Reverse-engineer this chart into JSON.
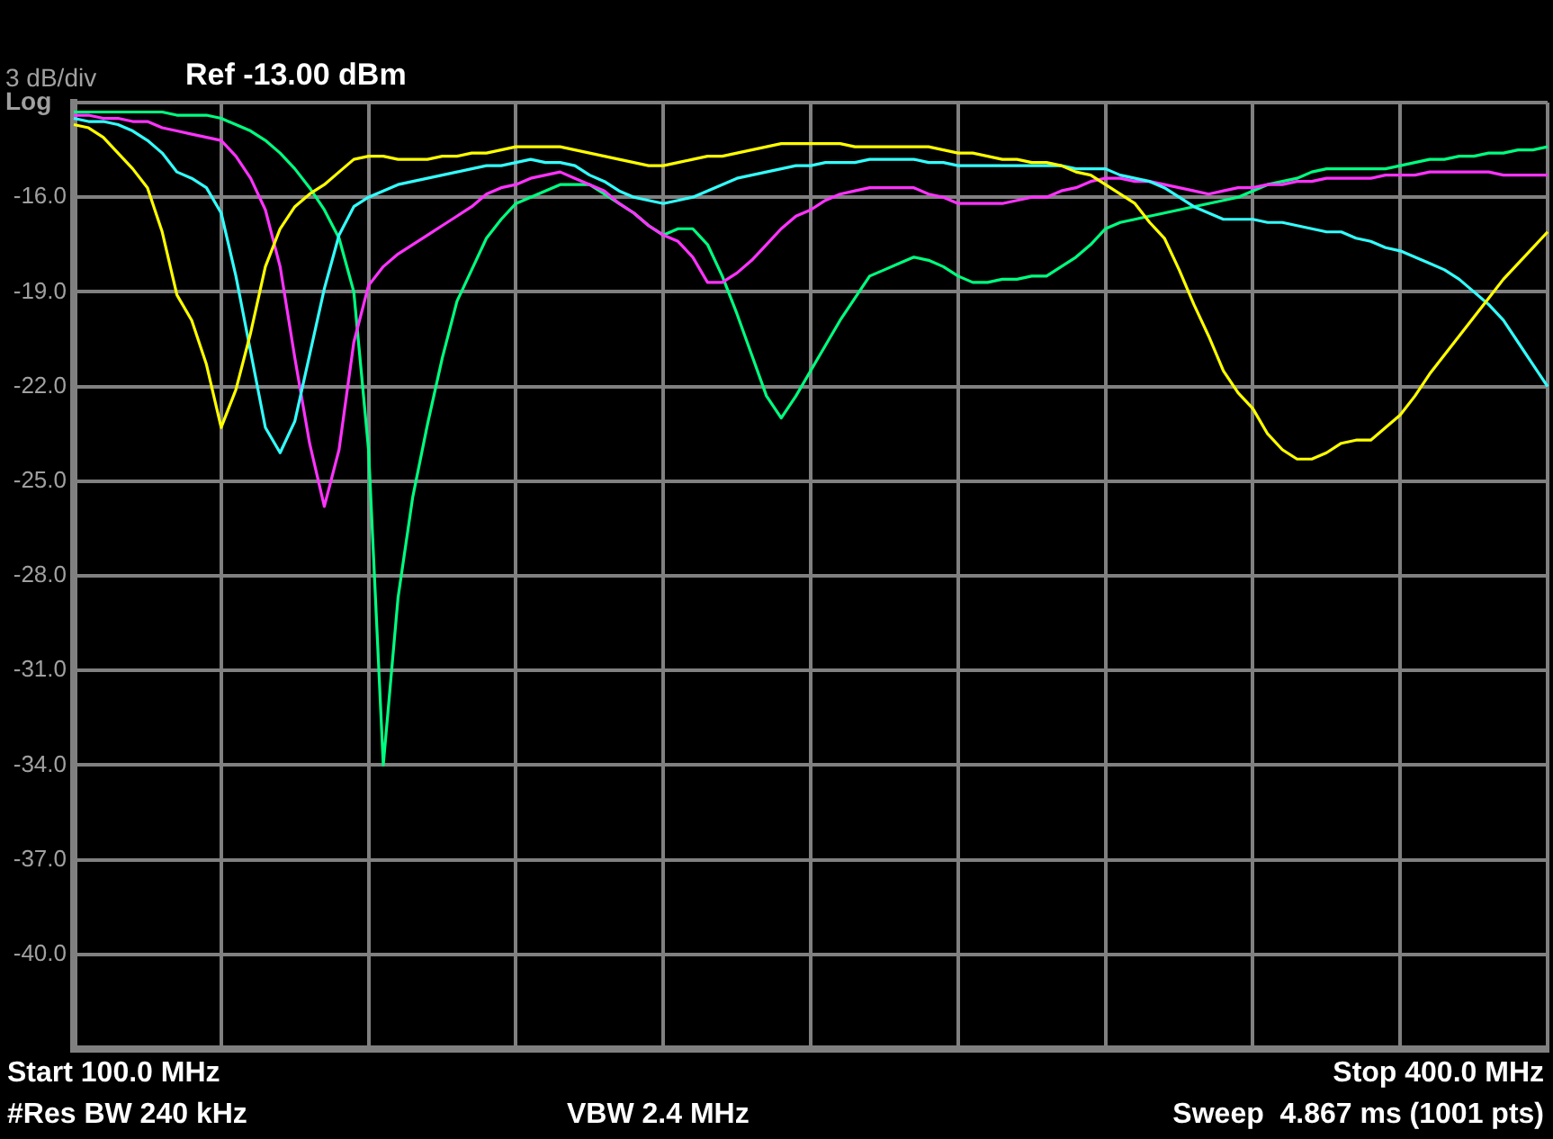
{
  "chart_data": {
    "type": "line",
    "title": "Ref -13.00 dBm",
    "ylabel": "3 dB/div",
    "annotations": [
      "Log",
      "Start 100.0 MHz",
      "Stop 400.0 MHz",
      "#Res BW 240 kHz",
      "VBW 2.4 MHz",
      "Sweep  4.867 ms (1001 pts)"
    ],
    "categories": [
      null,
      null,
      null,
      null,
      null,
      null,
      null,
      null,
      null,
      null,
      null,
      null,
      null,
      null,
      null,
      null,
      null,
      null,
      null,
      null,
      null,
      null,
      null,
      null,
      null,
      null,
      null,
      null,
      null,
      null,
      null,
      null,
      null,
      null,
      null,
      null,
      null,
      null,
      null,
      null,
      null,
      null,
      null,
      null,
      null,
      null,
      null,
      null,
      null,
      null,
      null,
      null,
      null,
      null,
      null,
      null,
      null,
      null,
      null,
      null,
      null,
      null,
      null,
      null,
      null,
      null,
      null,
      null,
      null,
      null,
      null,
      null,
      null,
      null,
      null,
      null,
      null,
      null,
      null,
      null,
      null,
      null,
      null,
      null,
      null,
      null,
      null,
      null,
      null,
      null,
      null,
      null,
      null,
      null,
      null,
      null,
      null,
      null,
      null,
      null,
      null
    ],
    "ylim": [
      -43,
      -13
    ],
    "yticks": [
      {
        "value": -13,
        "label": null
      },
      {
        "value": -16,
        "label": "-16.0"
      },
      {
        "value": -19,
        "label": "-19.0"
      },
      {
        "value": -22,
        "label": "-22.0"
      },
      {
        "value": -25,
        "label": "-25.0"
      },
      {
        "value": -28,
        "label": "-28.0"
      },
      {
        "value": -31,
        "label": "-31.0"
      },
      {
        "value": -34,
        "label": "-34.0"
      },
      {
        "value": -37,
        "label": "-37.0"
      },
      {
        "value": -40,
        "label": "-40.0"
      },
      {
        "value": -43,
        "label": null
      }
    ],
    "tick_labels": "y",
    "grid": true,
    "legend": false,
    "marker": "none",
    "line_style": "solid",
    "series": [
      {
        "color": "#ffff00",
        "values": [
          -13.7,
          -13.8,
          -14.1,
          -14.6,
          -15.1,
          -15.7,
          -17.1,
          -19.1,
          -19.9,
          -21.3,
          -23.3,
          -22.1,
          -20.3,
          -18.2,
          -17.0,
          -16.3,
          -15.9,
          -15.6,
          -15.2,
          -14.8,
          -14.7,
          -14.7,
          -14.8,
          -14.8,
          -14.8,
          -14.7,
          -14.7,
          -14.6,
          -14.6,
          -14.5,
          -14.4,
          -14.4,
          -14.4,
          -14.4,
          -14.5,
          -14.6,
          -14.7,
          -14.8,
          -14.9,
          -15.0,
          -15.0,
          -14.9,
          -14.8,
          -14.7,
          -14.7,
          -14.6,
          -14.5,
          -14.4,
          -14.3,
          -14.3,
          -14.3,
          -14.3,
          -14.3,
          -14.4,
          -14.4,
          -14.4,
          -14.4,
          -14.4,
          -14.4,
          -14.5,
          -14.6,
          -14.6,
          -14.7,
          -14.8,
          -14.8,
          -14.9,
          -14.9,
          -15.0,
          -15.2,
          -15.3,
          -15.6,
          -15.9,
          -16.2,
          -16.8,
          -17.3,
          -18.3,
          -19.4,
          -20.4,
          -21.5,
          -22.2,
          -22.7,
          -23.5,
          -24.0,
          -24.3,
          -24.3,
          -24.1,
          -23.8,
          -23.7,
          -23.7,
          -23.3,
          -22.9,
          -22.3,
          -21.6,
          -21.0,
          -20.4,
          -19.8,
          -19.2,
          -18.6,
          -18.1,
          -17.6,
          -17.1
        ]
      },
      {
        "color": "#33ffff",
        "values": [
          -13.5,
          -13.6,
          -13.6,
          -13.7,
          -13.9,
          -14.2,
          -14.6,
          -15.2,
          -15.4,
          -15.7,
          -16.5,
          -18.5,
          -20.9,
          -23.3,
          -24.1,
          -23.1,
          -21.0,
          -18.9,
          -17.2,
          -16.3,
          -16.0,
          -15.8,
          -15.6,
          -15.5,
          -15.4,
          -15.3,
          -15.2,
          -15.1,
          -15.0,
          -15.0,
          -14.9,
          -14.8,
          -14.9,
          -14.9,
          -15.0,
          -15.3,
          -15.5,
          -15.8,
          -16.0,
          -16.1,
          -16.2,
          -16.1,
          -16.0,
          -15.8,
          -15.6,
          -15.4,
          -15.3,
          -15.2,
          -15.1,
          -15.0,
          -15.0,
          -14.9,
          -14.9,
          -14.9,
          -14.8,
          -14.8,
          -14.8,
          -14.8,
          -14.9,
          -14.9,
          -15.0,
          -15.0,
          -15.0,
          -15.0,
          -15.0,
          -15.0,
          -15.0,
          -15.0,
          -15.1,
          -15.1,
          -15.1,
          -15.3,
          -15.4,
          -15.5,
          -15.7,
          -16.0,
          -16.3,
          -16.5,
          -16.7,
          -16.7,
          -16.7,
          -16.8,
          -16.8,
          -16.9,
          -17.0,
          -17.1,
          -17.1,
          -17.3,
          -17.4,
          -17.6,
          -17.7,
          -17.9,
          -18.1,
          -18.3,
          -18.6,
          -19.0,
          -19.4,
          -19.9,
          -20.6,
          -21.3,
          -22.0
        ]
      },
      {
        "color": "#ff33ff",
        "values": [
          -13.4,
          -13.4,
          -13.5,
          -13.5,
          -13.6,
          -13.6,
          -13.8,
          -13.9,
          -14.0,
          -14.1,
          -14.2,
          -14.7,
          -15.4,
          -16.4,
          -18.2,
          -21.1,
          -23.8,
          -25.8,
          -24.0,
          -20.6,
          -18.8,
          -18.2,
          -17.8,
          -17.5,
          -17.2,
          -16.9,
          -16.6,
          -16.3,
          -15.9,
          -15.7,
          -15.6,
          -15.4,
          -15.3,
          -15.2,
          -15.4,
          -15.6,
          -15.8,
          -16.2,
          -16.5,
          -16.9,
          -17.2,
          -17.4,
          -17.9,
          -18.7,
          -18.7,
          -18.4,
          -18.0,
          -17.5,
          -17.0,
          -16.6,
          -16.4,
          -16.1,
          -15.9,
          -15.8,
          -15.7,
          -15.7,
          -15.7,
          -15.7,
          -15.9,
          -16.0,
          -16.2,
          -16.2,
          -16.2,
          -16.2,
          -16.1,
          -16.0,
          -16.0,
          -15.8,
          -15.7,
          -15.5,
          -15.4,
          -15.4,
          -15.5,
          -15.5,
          -15.6,
          -15.7,
          -15.8,
          -15.9,
          -15.8,
          -15.7,
          -15.7,
          -15.6,
          -15.6,
          -15.5,
          -15.5,
          -15.4,
          -15.4,
          -15.4,
          -15.4,
          -15.3,
          -15.3,
          -15.3,
          -15.2,
          -15.2,
          -15.2,
          -15.2,
          -15.2,
          -15.3,
          -15.3,
          -15.3,
          -15.3
        ]
      },
      {
        "color": "#00ff80",
        "values": [
          -13.3,
          -13.3,
          -13.3,
          -13.3,
          -13.3,
          -13.3,
          -13.3,
          -13.4,
          -13.4,
          -13.4,
          -13.5,
          -13.7,
          -13.9,
          -14.2,
          -14.6,
          -15.1,
          -15.7,
          -16.4,
          -17.3,
          -19.0,
          -24.0,
          -34.0,
          -28.7,
          -25.5,
          -23.2,
          -21.1,
          -19.3,
          -18.3,
          -17.3,
          -16.7,
          -16.2,
          -16.0,
          -15.8,
          -15.6,
          -15.6,
          -15.6,
          -15.9,
          -16.2,
          -16.5,
          -16.9,
          -17.2,
          -17.0,
          -17.0,
          -17.5,
          -18.5,
          -19.7,
          -21.0,
          -22.3,
          -23.0,
          -22.3,
          -21.5,
          -20.7,
          -19.9,
          -19.2,
          -18.5,
          -18.3,
          -18.1,
          -17.9,
          -18.0,
          -18.2,
          -18.5,
          -18.7,
          -18.7,
          -18.6,
          -18.6,
          -18.5,
          -18.5,
          -18.2,
          -17.9,
          -17.5,
          -17.0,
          -16.8,
          -16.7,
          -16.6,
          -16.5,
          -16.4,
          -16.3,
          -16.2,
          -16.1,
          -16.0,
          -15.8,
          -15.6,
          -15.5,
          -15.4,
          -15.2,
          -15.1,
          -15.1,
          -15.1,
          -15.1,
          -15.1,
          -15.0,
          -14.9,
          -14.8,
          -14.8,
          -14.7,
          -14.7,
          -14.6,
          -14.6,
          -14.5,
          -14.5,
          -14.4
        ]
      }
    ]
  }
}
